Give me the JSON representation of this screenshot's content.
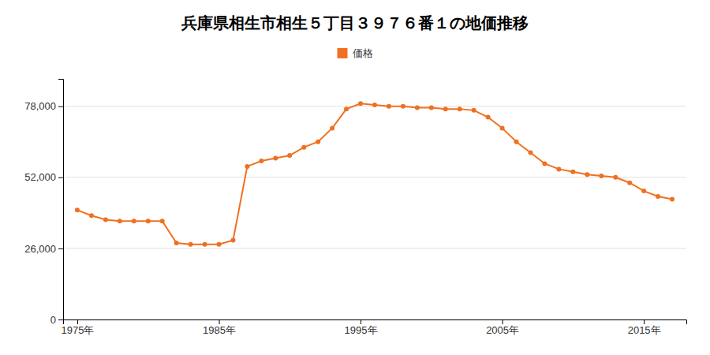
{
  "chart_data": {
    "type": "line",
    "title": "兵庫県相生市相生５丁目３９７６番１の地価推移",
    "x": [
      1975,
      1976,
      1977,
      1978,
      1979,
      1980,
      1981,
      1982,
      1983,
      1984,
      1985,
      1986,
      1987,
      1988,
      1989,
      1990,
      1991,
      1992,
      1993,
      1994,
      1995,
      1996,
      1997,
      1998,
      1999,
      2000,
      2001,
      2002,
      2003,
      2004,
      2005,
      2006,
      2007,
      2008,
      2009,
      2010,
      2011,
      2012,
      2013,
      2014,
      2015,
      2016,
      2017
    ],
    "series": [
      {
        "name": "価格",
        "color": "#f07020",
        "marker": "circle",
        "values": [
          40000,
          38000,
          36500,
          36000,
          36000,
          36000,
          36000,
          28000,
          27500,
          27500,
          27500,
          29000,
          56000,
          58000,
          59000,
          60000,
          63000,
          65000,
          70000,
          77000,
          79000,
          78500,
          78000,
          78000,
          77500,
          77500,
          77000,
          77000,
          76500,
          74000,
          70000,
          65000,
          61000,
          57000,
          55000,
          54000,
          53000,
          52500,
          52000,
          50000,
          47000,
          45000,
          44000
        ]
      }
    ],
    "xlim": [
      1974,
      2018
    ],
    "xticks": [
      {
        "value": 1975,
        "label": "1975年"
      },
      {
        "value": 1985,
        "label": "1985年"
      },
      {
        "value": 1995,
        "label": "1995年"
      },
      {
        "value": 2005,
        "label": "2005年"
      },
      {
        "value": 2015,
        "label": "2015年"
      }
    ],
    "ylim": [
      0,
      88000
    ],
    "yticks": [
      0,
      {
        "value": 26000,
        "label": "26,000"
      },
      {
        "value": 52000,
        "label": "52,000"
      },
      {
        "value": 78000,
        "label": "78,000"
      }
    ],
    "grid": "y",
    "legend": "top"
  }
}
